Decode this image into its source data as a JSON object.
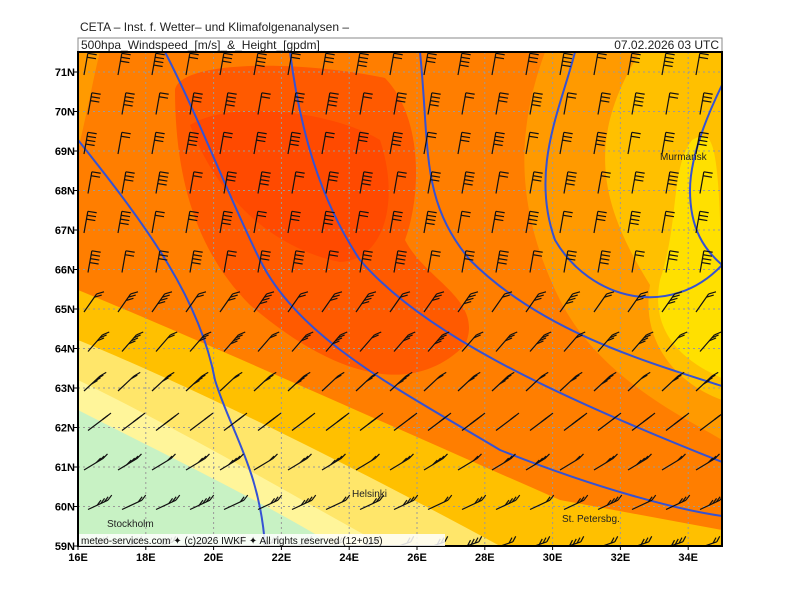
{
  "header": {
    "line1": "CETA – Inst. f. Wetter– und Klimafolgenanalysen –",
    "title": "500hpa_Windspeed_[m/s]_&_Height_[gpdm]",
    "timestamp": "07.02.2026 03 UTC"
  },
  "lat_labels": [
    "71N",
    "70N",
    "69N",
    "68N",
    "67N",
    "66N",
    "65N",
    "64N",
    "63N",
    "62N",
    "61N",
    "60N",
    "59N"
  ],
  "lon_labels": [
    "16E",
    "18E",
    "20E",
    "22E",
    "24E",
    "26E",
    "28E",
    "30E",
    "32E",
    "34E"
  ],
  "places": [
    "Murmansk",
    "Helsinki",
    "Stockholm",
    "St. Petersbg."
  ],
  "footer": "meteo-services.com ✦ (c)2026 IWKF ✦ All rights reserved (12+015)"
}
